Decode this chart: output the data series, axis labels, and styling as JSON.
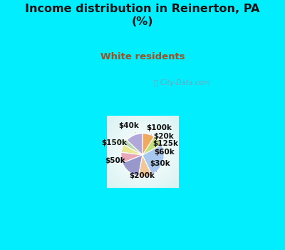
{
  "title": "Income distribution in Reinerton, PA\n(%)",
  "subtitle": "White residents",
  "title_color": "#111111",
  "subtitle_color": "#a05020",
  "bg_cyan": "#00eeff",
  "labels": [
    "$100k",
    "$20k",
    "$125k",
    "$60k",
    "$30k",
    "$200k",
    "$50k",
    "$150k",
    "$40k"
  ],
  "sizes": [
    13,
    4,
    6,
    8,
    16,
    10,
    26,
    8,
    9
  ],
  "colors": [
    "#b0a8d8",
    "#b8d8b0",
    "#e8e890",
    "#e8a8b8",
    "#9898cc",
    "#f0c898",
    "#a8c8f0",
    "#c0e078",
    "#f0aa60"
  ],
  "startangle": 90,
  "wedge_edge_color": "#ffffff",
  "label_fontsize": 7.5,
  "label_color": "#111111",
  "watermark": "City-Data.com"
}
